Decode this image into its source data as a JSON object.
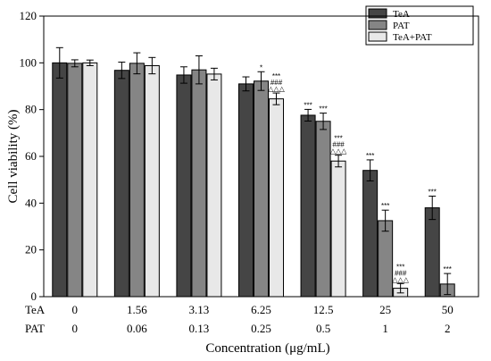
{
  "chart_data": {
    "type": "bar",
    "categories": [
      "0",
      "1.56",
      "3.13",
      "6.25",
      "12.5",
      "25",
      "50"
    ],
    "secondary_categories": [
      "0",
      "0.06",
      "0.13",
      "0.25",
      "0.5",
      "1",
      "2"
    ],
    "row_labels": [
      "TeA",
      "PAT"
    ],
    "series": [
      {
        "name": "TeA",
        "color": "#454545",
        "values": [
          100,
          96.8,
          94.8,
          91.0,
          77.6,
          54.0,
          38.0
        ],
        "errors": [
          6.5,
          3.5,
          3.5,
          3.0,
          2.5,
          4.5,
          5.0
        ],
        "annotations": [
          [],
          [],
          [],
          [],
          [
            "***"
          ],
          [
            "***"
          ],
          [
            "***"
          ]
        ]
      },
      {
        "name": "PAT",
        "color": "#858585",
        "values": [
          99.8,
          99.8,
          97.0,
          92.2,
          75.0,
          32.5,
          5.4
        ],
        "errors": [
          1.5,
          4.5,
          6.0,
          4.0,
          3.5,
          4.5,
          4.5
        ],
        "annotations": [
          [],
          [],
          [],
          [
            "*"
          ],
          [
            "***"
          ],
          [
            "***"
          ],
          [
            "***"
          ]
        ]
      },
      {
        "name": "TeA+PAT",
        "color": "#e8e8e8",
        "values": [
          100,
          98.8,
          95.2,
          84.6,
          58.0,
          3.6,
          null
        ],
        "errors": [
          1.2,
          3.5,
          2.5,
          2.5,
          2.5,
          2.0,
          null
        ],
        "annotations": [
          [],
          [],
          [],
          [
            "***",
            "###",
            "△△△"
          ],
          [
            "***",
            "###",
            "△△△"
          ],
          [
            "***",
            "###",
            "△△△"
          ],
          []
        ]
      }
    ],
    "xlabel": "Concentration (μg/mL)",
    "ylabel": "Cell viability (%)",
    "ylim": [
      0,
      120
    ],
    "yticks": [
      0,
      20,
      40,
      60,
      80,
      100,
      120
    ],
    "legend_position": "top-right",
    "grid": false
  }
}
